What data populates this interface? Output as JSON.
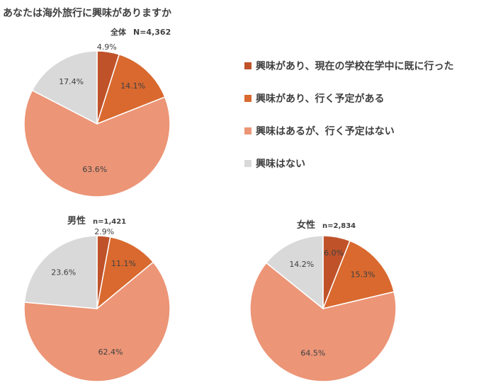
{
  "title": "あなたは海外旅行に興味がありますか",
  "legend": [
    {
      "label": "興味があり、現在の学校在学中に既に行った",
      "color": "#C0522A"
    },
    {
      "label": "興味があり、行く予定がある",
      "color": "#D9692F"
    },
    {
      "label": "興味はあるが、行く予定はない",
      "color": "#EC9577"
    },
    {
      "label": "興味はない",
      "color": "#D9D9D9"
    }
  ],
  "groups": {
    "all": {
      "label": "全体",
      "n": "N=4,362"
    },
    "male": {
      "label": "男性",
      "n": "n=1,421"
    },
    "female": {
      "label": "女性",
      "n": "n=2,834"
    }
  },
  "chart_data": [
    {
      "type": "pie",
      "title": "全体 N=4,362",
      "categories": [
        "興味があり、現在の学校在学中に既に行った",
        "興味があり、行く予定がある",
        "興味はあるが、行く予定はない",
        "興味はない"
      ],
      "values": [
        4.9,
        14.1,
        63.6,
        17.4
      ],
      "labels": [
        "4.9%",
        "14.1%",
        "63.6%",
        "17.4%"
      ],
      "colors": [
        "#C0522A",
        "#D9692F",
        "#EC9577",
        "#D9D9D9"
      ],
      "legend": "right"
    },
    {
      "type": "pie",
      "title": "男性 n=1,421",
      "categories": [
        "興味があり、現在の学校在学中に既に行った",
        "興味があり、行く予定がある",
        "興味はあるが、行く予定はない",
        "興味はない"
      ],
      "values": [
        2.9,
        11.1,
        62.4,
        23.6
      ],
      "labels": [
        "2.9%",
        "11.1%",
        "62.4%",
        "23.6%"
      ],
      "colors": [
        "#C0522A",
        "#D9692F",
        "#EC9577",
        "#D9D9D9"
      ]
    },
    {
      "type": "pie",
      "title": "女性 n=2,834",
      "categories": [
        "興味があり、現在の学校在学中に既に行った",
        "興味があり、行く予定がある",
        "興味はあるが、行く予定はない",
        "興味はない"
      ],
      "values": [
        6.0,
        15.3,
        64.5,
        14.2
      ],
      "labels": [
        "6.0%",
        "15.3%",
        "64.5%",
        "14.2%"
      ],
      "colors": [
        "#C0522A",
        "#D9692F",
        "#EC9577",
        "#D9D9D9"
      ]
    }
  ]
}
